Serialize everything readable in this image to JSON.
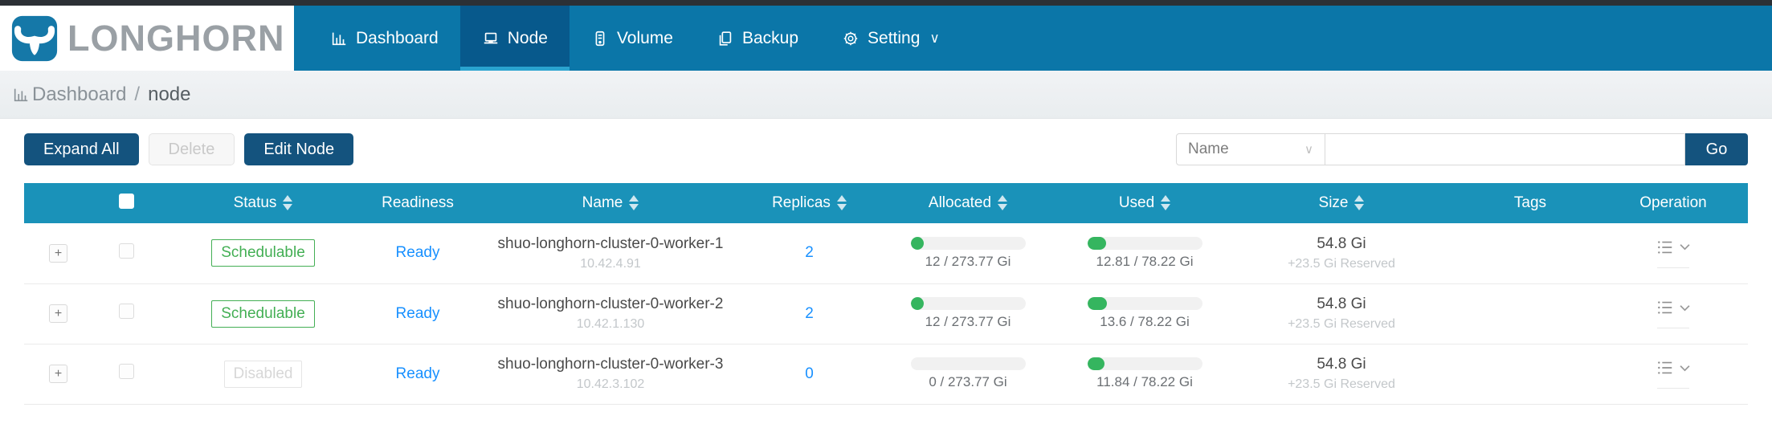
{
  "brand": {
    "name": "LONGHORN"
  },
  "nav": {
    "items": [
      {
        "label": "Dashboard",
        "icon": "bar-chart-icon",
        "active": false
      },
      {
        "label": "Node",
        "icon": "laptop-icon",
        "active": true
      },
      {
        "label": "Volume",
        "icon": "database-icon",
        "active": false
      },
      {
        "label": "Backup",
        "icon": "copy-icon",
        "active": false
      },
      {
        "label": "Setting",
        "icon": "gear-icon",
        "active": false,
        "has_submenu": true
      }
    ]
  },
  "breadcrumb": {
    "root": "Dashboard",
    "separator": "/",
    "current": "node"
  },
  "toolbar": {
    "expand_all_label": "Expand All",
    "delete_label": "Delete",
    "edit_node_label": "Edit Node",
    "search": {
      "field": "Name",
      "value": "",
      "go_label": "Go"
    }
  },
  "table": {
    "expand_symbol": "+",
    "columns": [
      {
        "label": "",
        "key": "expand",
        "sortable": false
      },
      {
        "label": "",
        "key": "select",
        "sortable": false
      },
      {
        "label": "Status",
        "sortable": true
      },
      {
        "label": "Readiness",
        "sortable": false
      },
      {
        "label": "Name",
        "sortable": true
      },
      {
        "label": "Replicas",
        "sortable": true
      },
      {
        "label": "Allocated",
        "sortable": true
      },
      {
        "label": "Used",
        "sortable": true
      },
      {
        "label": "Size",
        "sortable": true
      },
      {
        "label": "Tags",
        "sortable": false
      },
      {
        "label": "Operation",
        "sortable": false
      }
    ],
    "rows": [
      {
        "status": "Schedulable",
        "status_type": "schedulable",
        "readiness": "Ready",
        "name": "shuo-longhorn-cluster-0-worker-1",
        "ip": "10.42.4.91",
        "replicas": "2",
        "allocated": {
          "label": "12 / 273.77 Gi",
          "percent": 4.4
        },
        "used": {
          "label": "12.81 / 78.22 Gi",
          "percent": 16.4
        },
        "size": "54.8 Gi",
        "reserved": "+23.5 Gi Reserved",
        "tags": ""
      },
      {
        "status": "Schedulable",
        "status_type": "schedulable",
        "readiness": "Ready",
        "name": "shuo-longhorn-cluster-0-worker-2",
        "ip": "10.42.1.130",
        "replicas": "2",
        "allocated": {
          "label": "12 / 273.77 Gi",
          "percent": 4.4
        },
        "used": {
          "label": "13.6 / 78.22 Gi",
          "percent": 17.4
        },
        "size": "54.8 Gi",
        "reserved": "+23.5 Gi Reserved",
        "tags": ""
      },
      {
        "status": "Disabled",
        "status_type": "disabled",
        "readiness": "Ready",
        "name": "shuo-longhorn-cluster-0-worker-3",
        "ip": "10.42.3.102",
        "replicas": "0",
        "allocated": {
          "label": "0 / 273.77 Gi",
          "percent": 0
        },
        "used": {
          "label": "11.84 / 78.22 Gi",
          "percent": 15.1
        },
        "size": "54.8 Gi",
        "reserved": "+23.5 Gi Reserved",
        "tags": ""
      }
    ]
  },
  "colors": {
    "nav_blue": "#0b76a8",
    "nav_active": "#07598c",
    "nav_underline": "#2aa3cf",
    "table_header_blue": "#1a92b9",
    "button_blue": "#14537e",
    "success_green": "#35b55f",
    "link_blue": "#1890ff"
  }
}
